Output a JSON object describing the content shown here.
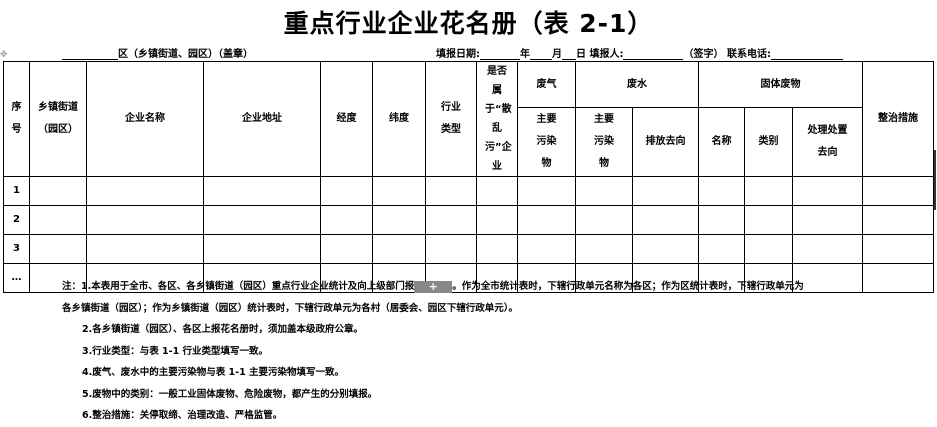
{
  "title": "重点行业企业花名册（表 2-1）",
  "info": {
    "district_label": "区（乡镇街道、园区）（盖章）",
    "date_label": "填报日期:",
    "year": "年",
    "month": "月",
    "day": "日",
    "filler_label": "填报人:",
    "sign_label": "（签字）",
    "phone_label": "联系电话:"
  },
  "headers": {
    "seq": "序号",
    "town": "乡镇街道（园区）",
    "name": "企业名称",
    "address": "企业地址",
    "longitude": "经度",
    "latitude": "纬度",
    "industry": "行业类型",
    "scattered": "是否属于“散乱污”企业",
    "waste_gas": "废气",
    "waste_water": "废水",
    "solid_waste": "固体废物",
    "remediation": "整治措施",
    "gas_pollutant": "主要污染物",
    "water_pollutant": "主要污染物",
    "discharge": "排放去向",
    "solid_name": "名称",
    "solid_type": "类别",
    "disposal": "处理处置去向"
  },
  "rows": [
    "1",
    "2",
    "3",
    "…"
  ],
  "notes": {
    "n1a": "注：1.本表用于全市、各区、各乡镇街道（园区）重点行业企业统计及向上级部门报",
    "n1_overlay": "+",
    "n1b": "。作为全市统计表时，下辖行政单元名称为各区；作为区统计表时，下辖行政单元为",
    "n1c": "各乡镇街道（园区）；作为乡镇街道（园区）统计表时，下辖行政单元为各村（居委会、园区下辖行政单元）。",
    "n2": "2.各乡镇街道（园区）、各区上报花名册时，须加盖本级政府公章。",
    "n3": "3.行业类型：与表 1-1 行业类型填写一致。",
    "n4": "4.废气、废水中的主要污染物与表 1-1 主要污染物填写一致。",
    "n5": "5.废物中的类别：一般工业固体废物、危险废物，都产生的分别填报。",
    "n6": "6.整治措施：关停取缔、治理改造、严格监管。"
  }
}
